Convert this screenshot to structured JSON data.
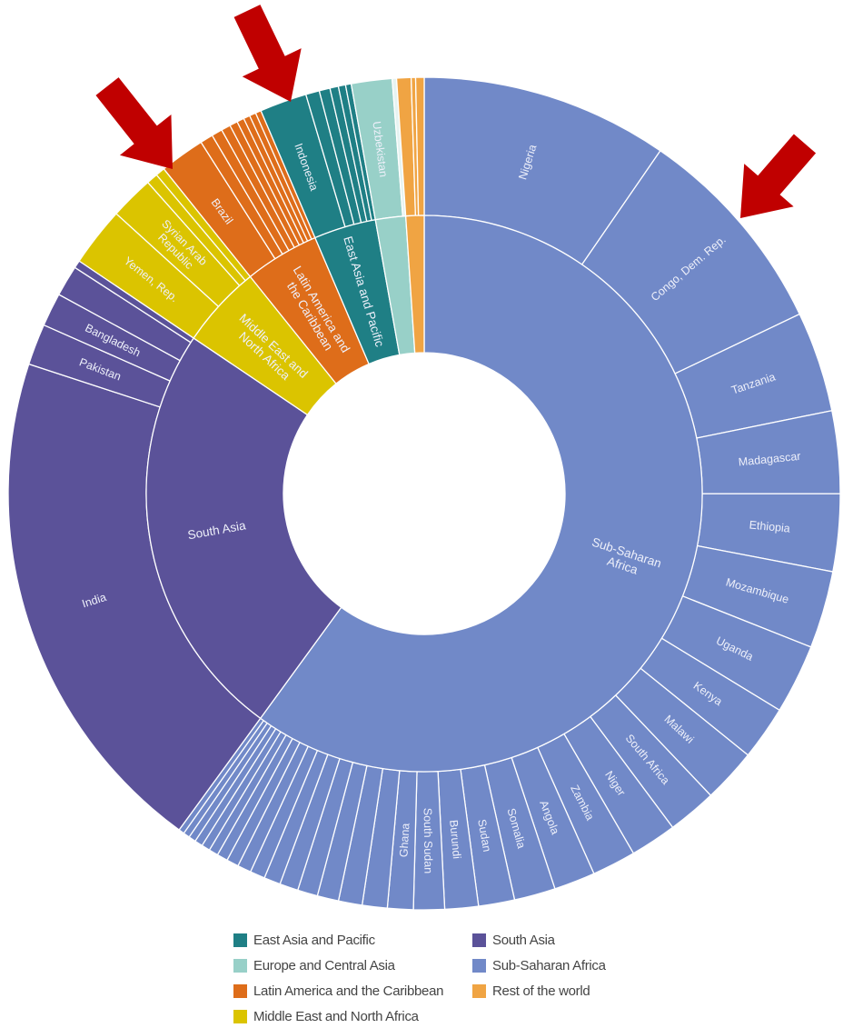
{
  "chart_data": {
    "type": "sunburst",
    "title": "",
    "unit": "share of total (%)",
    "start": "top, clockwise",
    "regions": [
      {
        "name": "Sub-Saharan Africa",
        "label_lines": [
          "Sub-Saharan",
          "Africa"
        ],
        "color": "#7189c8",
        "countries": [
          {
            "name": "Nigeria",
            "value": 9.6
          },
          {
            "name": "Congo, Dem. Rep.",
            "value": 8.3
          },
          {
            "name": "Tanzania",
            "value": 3.9
          },
          {
            "name": "Madagascar",
            "value": 3.2
          },
          {
            "name": "Ethiopia",
            "value": 3.0
          },
          {
            "name": "Mozambique",
            "value": 3.0
          },
          {
            "name": "Uganda",
            "value": 2.7
          },
          {
            "name": "Kenya",
            "value": 2.1
          },
          {
            "name": "Malawi",
            "value": 2.1
          },
          {
            "name": "South Africa",
            "value": 1.9
          },
          {
            "name": "Niger",
            "value": 1.8
          },
          {
            "name": "Zambia",
            "value": 1.7
          },
          {
            "name": "Angola",
            "value": 1.6
          },
          {
            "name": "Somalia",
            "value": 1.6
          },
          {
            "name": "Sudan",
            "value": 1.4
          },
          {
            "name": "Burundi",
            "value": 1.3
          },
          {
            "name": "South Sudan",
            "value": 1.2
          },
          {
            "name": "Ghana",
            "value": 1.0
          },
          {
            "name": "",
            "value": 0.97
          },
          {
            "name": "",
            "value": 0.92
          },
          {
            "name": "",
            "value": 0.83
          },
          {
            "name": "",
            "value": 0.78
          },
          {
            "name": "",
            "value": 0.72
          },
          {
            "name": "",
            "value": 0.64
          },
          {
            "name": "",
            "value": 0.58
          },
          {
            "name": "",
            "value": 0.53
          },
          {
            "name": "",
            "value": 0.47
          },
          {
            "name": "",
            "value": 0.42
          },
          {
            "name": "",
            "value": 0.36
          },
          {
            "name": "",
            "value": 0.33
          },
          {
            "name": "",
            "value": 0.31
          },
          {
            "name": "",
            "value": 0.28
          },
          {
            "name": "",
            "value": 0.25
          },
          {
            "name": "",
            "value": 0.22
          }
        ]
      },
      {
        "name": "South Asia",
        "label_lines": [
          "South Asia"
        ],
        "color": "#5b5299",
        "countries": [
          {
            "name": "India",
            "value": 20.0
          },
          {
            "name": "Pakistan",
            "value": 1.6
          },
          {
            "name": "Bangladesh",
            "value": 1.3
          },
          {
            "name": "",
            "value": 1.2
          },
          {
            "name": "",
            "value": 0.3
          }
        ]
      },
      {
        "name": "Middle East and North Africa",
        "label_lines": [
          "Middle East and",
          "North Africa"
        ],
        "color": "#dbc400",
        "countries": [
          {
            "name": "Yemen, Rep.",
            "value": 2.3
          },
          {
            "name": "Syrian Arab Republic",
            "label_lines": [
              "Syrian Arab",
              "Republic"
            ],
            "value": 1.7
          },
          {
            "name": "",
            "value": 0.44
          },
          {
            "name": "",
            "value": 0.36
          }
        ]
      },
      {
        "name": "Latin America and the Caribbean",
        "label_lines": [
          "Latin America and",
          "the Caribbean"
        ],
        "color": "#de6d1a",
        "countries": [
          {
            "name": "Brazil",
            "value": 1.75
          },
          {
            "name": "",
            "value": 0.5
          },
          {
            "name": "",
            "value": 0.42
          },
          {
            "name": "",
            "value": 0.36
          },
          {
            "name": "",
            "value": 0.31
          },
          {
            "name": "",
            "value": 0.28
          },
          {
            "name": "",
            "value": 0.25
          },
          {
            "name": "",
            "value": 0.25
          },
          {
            "name": "",
            "value": 0.22
          }
        ]
      },
      {
        "name": "East Asia and Pacific",
        "label_lines": [
          "East Asia and Pacific"
        ],
        "color": "#1f7f85",
        "countries": [
          {
            "name": "Indonesia",
            "value": 1.83
          },
          {
            "name": "",
            "value": 0.53
          },
          {
            "name": "",
            "value": 0.42
          },
          {
            "name": "",
            "value": 0.33
          },
          {
            "name": "",
            "value": 0.28
          },
          {
            "name": "",
            "value": 0.22
          }
        ]
      },
      {
        "name": "Europe and Central Asia",
        "label_lines": [],
        "color": "#98d0c8",
        "countries": [
          {
            "name": "Uzbekistan",
            "value": 1.58
          },
          {
            "name": "",
            "value": 0.17,
            "color": "#e6f3f1"
          }
        ]
      },
      {
        "name": "Rest of the world",
        "label_lines": [],
        "color": "#f0a443",
        "countries": [
          {
            "name": "",
            "value": 0.56
          },
          {
            "name": "",
            "value": 0.17
          },
          {
            "name": "",
            "value": 0.33
          }
        ]
      }
    ],
    "highlighted_countries": [
      "Syrian Arab Republic",
      "Indonesia",
      "Congo, Dem. Rep."
    ],
    "legend": [
      {
        "label": "East Asia and Pacific",
        "color": "#1f7f85"
      },
      {
        "label": "Europe and Central Asia",
        "color": "#98d0c8"
      },
      {
        "label": "Latin America and the Caribbean",
        "color": "#de6d1a"
      },
      {
        "label": "Middle East and North Africa",
        "color": "#dbc400"
      },
      {
        "label": "South Asia",
        "color": "#5b5299"
      },
      {
        "label": "Sub-Saharan Africa",
        "color": "#7189c8"
      },
      {
        "label": "Rest of the world",
        "color": "#f0a443"
      }
    ],
    "legend_placement": "bottom",
    "annotation_color": "#c00000"
  }
}
